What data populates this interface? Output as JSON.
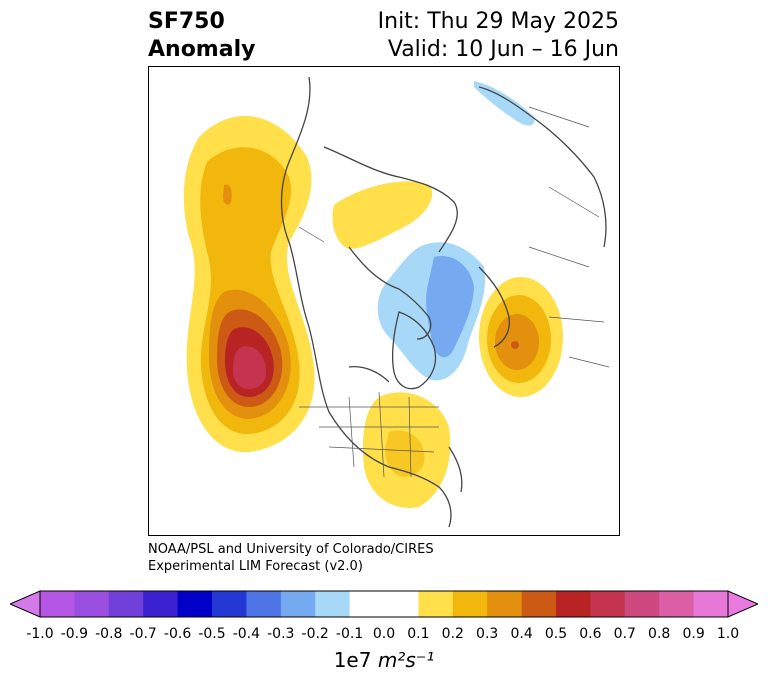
{
  "title": {
    "variable": "SF750",
    "subtitle": "Anomaly",
    "init": "Init: Thu 29 May 2025",
    "valid": "Valid: 10 Jun – 16 Jun"
  },
  "credit": {
    "line1": "NOAA/PSL and University of Colorado/CIRES",
    "line2": "Experimental LIM Forecast (v2.0)"
  },
  "colorbar": {
    "ticks": [
      "-1.0",
      "-0.9",
      "-0.8",
      "-0.7",
      "-0.6",
      "-0.5",
      "-0.4",
      "-0.3",
      "-0.2",
      "-0.1",
      "0.0",
      "0.1",
      "0.2",
      "0.3",
      "0.4",
      "0.5",
      "0.6",
      "0.7",
      "0.8",
      "0.9",
      "1.0"
    ],
    "colors": [
      "#b656e4",
      "#9b4fe0",
      "#7040d8",
      "#3a22d0",
      "#0000c8",
      "#2438d4",
      "#4e74e6",
      "#75aaf0",
      "#a8d8f8",
      "#ffffff",
      "#ffffff",
      "#ffdf4a",
      "#f2b70c",
      "#e2900e",
      "#cc5a14",
      "#b82424",
      "#c4344e",
      "#d04880",
      "#dc5ea4",
      "#e878d8"
    ],
    "extend_colors": {
      "low": "#d37ae8",
      "high": "#e87ae0"
    },
    "units_prefix": "1e7",
    "units_expr": "m²s⁻¹"
  },
  "map": {
    "projection": "polar-stereographic-north",
    "anomaly_features": [
      {
        "region": "NE Pacific / Gulf of Alaska",
        "sign": "positive",
        "peak": 0.7
      },
      {
        "region": "Eastern United States",
        "sign": "positive",
        "peak": 0.2
      },
      {
        "region": "Western Siberia",
        "sign": "positive",
        "peak": 0.5
      },
      {
        "region": "Arctic Canada / Greenland",
        "sign": "positive",
        "peak": 0.1
      },
      {
        "region": "Northern Atlantic / Svalbard",
        "sign": "negative",
        "peak": -0.3
      },
      {
        "region": "Eastern Siberia",
        "sign": "negative",
        "peak": -0.2
      }
    ]
  }
}
